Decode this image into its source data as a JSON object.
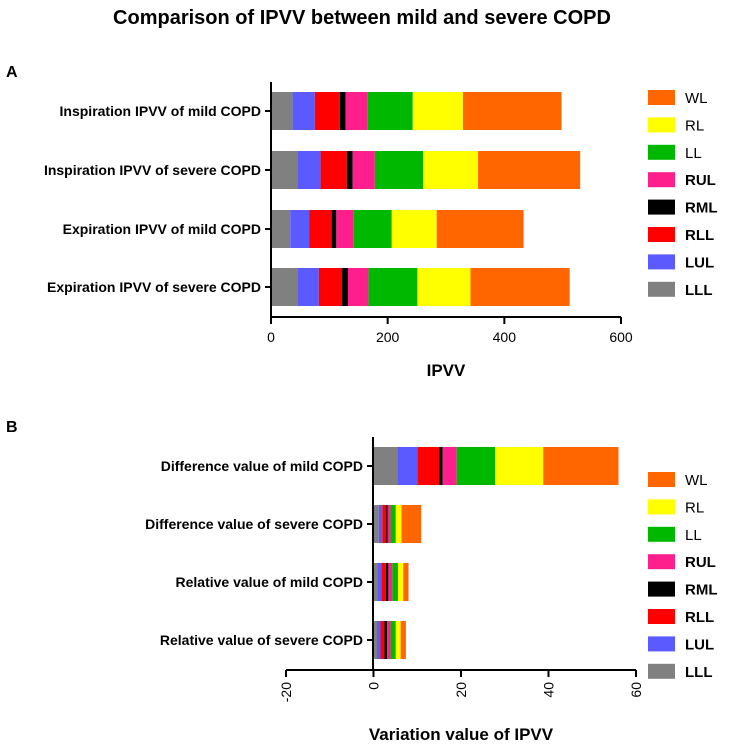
{
  "chart_data": [
    {
      "type": "bar",
      "orientation": "horizontal",
      "stacked": true,
      "panel": "A",
      "title": "Comparison of IPVV between mild and severe COPD",
      "xlabel": "IPVV",
      "ylabel": "",
      "xlim": [
        0,
        600
      ],
      "xticks": [
        "0",
        "200",
        "400",
        "600"
      ],
      "categories": [
        "Inspiration IPVV of mild COPD",
        "Inspiration IPVV of severe COPD",
        "Expiration IPVV of mild COPD",
        "Expiration IPVV of severe COPD"
      ],
      "series": [
        {
          "name": "LLL",
          "color": "#808080",
          "values": [
            37,
            45,
            33,
            45
          ]
        },
        {
          "name": "LUL",
          "color": "#5a5aff",
          "values": [
            38,
            40,
            33,
            37
          ]
        },
        {
          "name": "RLL",
          "color": "#ff0000",
          "values": [
            43,
            45,
            38,
            40
          ]
        },
        {
          "name": "RML",
          "color": "#000000",
          "values": [
            10,
            10,
            8,
            10
          ]
        },
        {
          "name": "RUL",
          "color": "#ff1f8c",
          "values": [
            37,
            38,
            29,
            35
          ]
        },
        {
          "name": "LL",
          "color": "#00b800",
          "values": [
            78,
            83,
            66,
            84
          ]
        },
        {
          "name": "RL",
          "color": "#ffff00",
          "values": [
            86,
            94,
            77,
            91
          ]
        },
        {
          "name": "WL",
          "color": "#ff6600",
          "values": [
            169,
            175,
            149,
            170
          ]
        }
      ],
      "legend": [
        "WL",
        "RL",
        "LL",
        "RUL",
        "RML",
        "RLL",
        "LUL",
        "LLL"
      ],
      "legend_position": "right"
    },
    {
      "type": "bar",
      "orientation": "horizontal",
      "stacked": true,
      "panel": "B",
      "xlabel": "Variation value of IPVV",
      "ylabel": "",
      "xlim": [
        -20,
        60
      ],
      "xticks": [
        "-20",
        "0",
        "20",
        "40",
        "60"
      ],
      "categories": [
        "Difference value of mild COPD",
        "Difference value of severe COPD",
        "Relative value of mild COPD",
        "Relative value of severe COPD"
      ],
      "series": [
        {
          "name": "LLL",
          "color": "#808080",
          "values": [
            5.5,
            1.2,
            0.9,
            0.8
          ]
        },
        {
          "name": "LUL",
          "color": "#5a5aff",
          "values": [
            4.5,
            0.8,
            0.9,
            0.8
          ]
        },
        {
          "name": "RLL",
          "color": "#ff0000",
          "values": [
            5.0,
            0.9,
            1.0,
            0.9
          ]
        },
        {
          "name": "RML",
          "color": "#000000",
          "values": [
            0.8,
            0.3,
            0.6,
            0.6
          ]
        },
        {
          "name": "RUL",
          "color": "#ff1f8c",
          "values": [
            3.2,
            0.7,
            0.9,
            0.8
          ]
        },
        {
          "name": "LL",
          "color": "#00b800",
          "values": [
            8.8,
            1.2,
            1.3,
            1.2
          ]
        },
        {
          "name": "RL",
          "color": "#ffff00",
          "values": [
            11.0,
            1.3,
            1.2,
            1.1
          ]
        },
        {
          "name": "WL",
          "color": "#ff6600",
          "values": [
            17.2,
            4.5,
            1.2,
            1.2
          ]
        }
      ],
      "legend": [
        "WL",
        "RL",
        "LL",
        "RUL",
        "RML",
        "RLL",
        "LUL",
        "LLL"
      ],
      "legend_position": "right"
    }
  ],
  "panel_labels": [
    "A",
    "B"
  ]
}
